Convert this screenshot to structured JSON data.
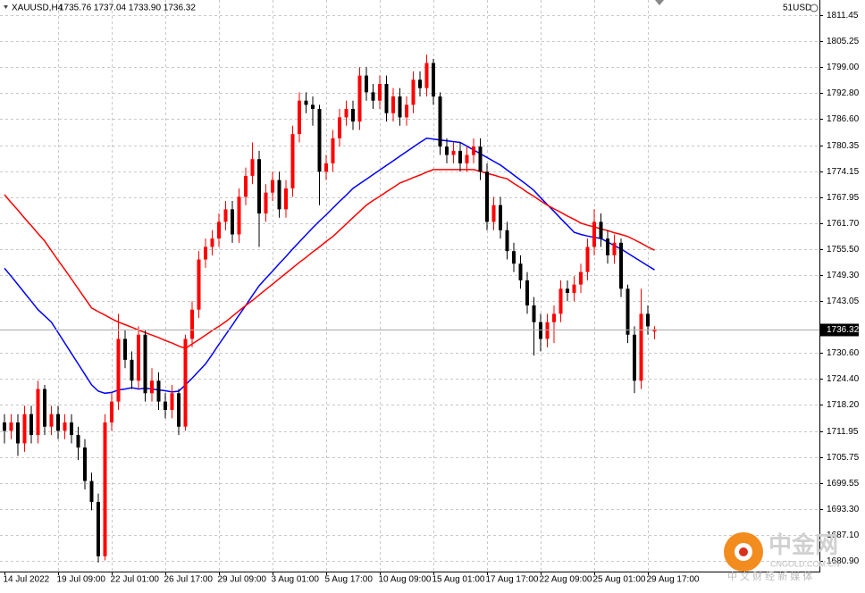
{
  "chart_data": {
    "type": "candlestick",
    "header": {
      "symbol": "XAUUSD,H4",
      "info": "1735.76 1737.04 1733.90 1736.32",
      "account": "51USD"
    },
    "watermark": {
      "name": "中金网",
      "site": "CNGOLD.COM.CN",
      "slogan": "中 文 财 经 新 媒 体"
    },
    "categories": [
      "14 Jul 2022",
      null,
      null,
      null,
      null,
      null,
      null,
      null,
      "19 Jul 09:00",
      null,
      null,
      null,
      null,
      null,
      null,
      null,
      "22 Jul 01:00",
      null,
      null,
      null,
      null,
      null,
      null,
      null,
      "26 Jul 17:00",
      null,
      null,
      null,
      null,
      null,
      null,
      null,
      "29 Jul 09:00",
      null,
      null,
      null,
      null,
      null,
      null,
      null,
      "3 Aug 01:00",
      null,
      null,
      null,
      null,
      null,
      null,
      null,
      "5 Aug 17:00",
      null,
      null,
      null,
      null,
      null,
      null,
      null,
      "10 Aug 09:00",
      null,
      null,
      null,
      null,
      null,
      null,
      null,
      "15 Aug 01:00",
      null,
      null,
      null,
      null,
      null,
      null,
      null,
      "17 Aug 17:00",
      null,
      null,
      null,
      null,
      null,
      null,
      null,
      "22 Aug 09:00",
      null,
      null,
      null,
      null,
      null,
      null,
      null,
      "25 Aug 01:00",
      null,
      null,
      null,
      null,
      null,
      null,
      null,
      "29 Aug 17:00",
      null
    ],
    "open": [
      1714,
      1712,
      1714,
      1709,
      1716,
      1711,
      1722,
      1713,
      1716,
      1712,
      1714,
      1711,
      1708,
      1700,
      1695,
      1682,
      1714,
      1719,
      1734,
      1729,
      1724,
      1735,
      1721,
      1724,
      1719,
      1717,
      1721,
      1713,
      1734,
      1741,
      1753,
      1756,
      1758,
      1762,
      1765,
      1759,
      1768,
      1773,
      1777,
      1764,
      1769,
      1772,
      1765,
      1770,
      1783,
      1791,
      1790,
      1789,
      1774,
      1776,
      1782,
      1787,
      1789,
      1786,
      1797,
      1793,
      1791,
      1795,
      1788,
      1792,
      1787,
      1790,
      1796,
      1794,
      1800,
      1792,
      1780,
      1778,
      1779,
      1776,
      1778,
      1780,
      1774,
      1762,
      1766,
      1760,
      1755,
      1752,
      1748,
      1742,
      1738,
      1734,
      1738,
      1740,
      1746,
      1745,
      1747,
      1750,
      1756,
      1762,
      1758,
      1754,
      1757,
      1746,
      1735,
      1724,
      1740,
      1735.76
    ],
    "high": [
      1716,
      1716,
      1716,
      1718,
      1718,
      1724,
      1723,
      1718,
      1718,
      1716,
      1716,
      1713,
      1710,
      1702,
      1697,
      1716,
      1721,
      1740,
      1736,
      1731,
      1737,
      1736,
      1727,
      1726,
      1721,
      1723,
      1722,
      1735,
      1743,
      1755,
      1758,
      1760,
      1764,
      1767,
      1767,
      1770,
      1775,
      1781,
      1779,
      1771,
      1774,
      1774,
      1772,
      1785,
      1793,
      1793,
      1792,
      1790,
      1778,
      1784,
      1789,
      1791,
      1791,
      1799,
      1799,
      1795,
      1797,
      1797,
      1794,
      1794,
      1792,
      1798,
      1798,
      1802,
      1801,
      1793,
      1782,
      1781,
      1781,
      1780,
      1782,
      1782,
      1776,
      1768,
      1768,
      1762,
      1757,
      1754,
      1750,
      1744,
      1740,
      1740,
      1742,
      1748,
      1748,
      1749,
      1752,
      1758,
      1765,
      1764,
      1760,
      1759,
      1758,
      1747,
      1737,
      1746,
      1742,
      1737.04
    ],
    "low": [
      1709,
      1710,
      1706,
      1707,
      1709,
      1709,
      1711,
      1711,
      1710,
      1710,
      1709,
      1705,
      1698,
      1693,
      1680.5,
      1681,
      1712,
      1717,
      1727,
      1722,
      1722,
      1719,
      1719,
      1717,
      1715,
      1715,
      1711,
      1712,
      1732,
      1739,
      1751,
      1754,
      1756,
      1760,
      1757,
      1757,
      1766,
      1771,
      1756,
      1762,
      1767,
      1763,
      1763,
      1768,
      1781,
      1788,
      1785,
      1766,
      1772,
      1774,
      1780,
      1785,
      1784,
      1784,
      1791,
      1789,
      1789,
      1786,
      1786,
      1785,
      1785,
      1788,
      1792,
      1792,
      1790,
      1778,
      1776,
      1776,
      1774,
      1774,
      1776,
      1772,
      1760,
      1760,
      1758,
      1753,
      1750,
      1746,
      1740,
      1730,
      1731,
      1732,
      1733,
      1738,
      1743,
      1743,
      1745,
      1748,
      1754,
      1756,
      1752,
      1752,
      1744,
      1733,
      1721,
      1722,
      1735,
      1733.9
    ],
    "close": [
      1712,
      1714,
      1709,
      1716,
      1711,
      1722,
      1713,
      1716,
      1712,
      1714,
      1711,
      1708,
      1700,
      1695,
      1682,
      1714,
      1719,
      1734,
      1729,
      1724,
      1735,
      1721,
      1724,
      1719,
      1717,
      1721,
      1713,
      1734,
      1741,
      1753,
      1756,
      1758,
      1762,
      1765,
      1759,
      1768,
      1773,
      1777,
      1764,
      1769,
      1772,
      1765,
      1770,
      1783,
      1791,
      1790,
      1789,
      1774,
      1776,
      1782,
      1787,
      1789,
      1786,
      1797,
      1793,
      1791,
      1795,
      1788,
      1792,
      1787,
      1790,
      1796,
      1794,
      1800,
      1792,
      1780,
      1778,
      1779,
      1776,
      1778,
      1780,
      1774,
      1762,
      1766,
      1760,
      1755,
      1752,
      1748,
      1742,
      1738,
      1734,
      1738,
      1740,
      1746,
      1745,
      1747,
      1750,
      1756,
      1762,
      1758,
      1754,
      1757,
      1746,
      1735,
      1724,
      1740,
      1737,
      1736.32
    ],
    "up_color": "#ff0000",
    "down_color": "#000000",
    "lines": [
      {
        "color": "#0000ff",
        "values": [
          1750.9,
          1749,
          1747,
          1745,
          1743,
          1741,
          1739.5,
          1738,
          1735.5,
          1733,
          1730.5,
          1728,
          1725.5,
          1723,
          1721.5,
          1721,
          1721.2,
          1721.8,
          1722,
          1722.3,
          1722,
          1722.2,
          1722,
          1721.8,
          1721.6,
          1721.3,
          1721.5,
          1723,
          1724.6,
          1726.3,
          1728,
          1730.3,
          1732.7,
          1735,
          1737.3,
          1739.7,
          1742,
          1744.4,
          1746.7,
          1748.5,
          1750.2,
          1752,
          1753.7,
          1755.5,
          1757.2,
          1758.9,
          1760.6,
          1762.2,
          1763.7,
          1765.3,
          1766.9,
          1768.4,
          1770,
          1771.1,
          1772.2,
          1773.3,
          1774.4,
          1775.5,
          1776.6,
          1777.7,
          1778.8,
          1779.9,
          1781,
          1782,
          1781.8,
          1781.6,
          1781.4,
          1781.2,
          1781,
          1780.1,
          1779.2,
          1778.3,
          1777.4,
          1776.5,
          1775.6,
          1774.4,
          1773.2,
          1772,
          1770.8,
          1769.5,
          1767.8,
          1766.1,
          1764.5,
          1762.8,
          1761.2,
          1759.5,
          1759,
          1758.6,
          1758.3,
          1758,
          1757.2,
          1756.3,
          1755.5,
          1754.5,
          1753.5,
          1752.5,
          1751.5,
          1750.5
        ]
      },
      {
        "color": "#ff0000",
        "values": [
          1768.5,
          1766.6,
          1764.8,
          1762.9,
          1761.1,
          1759.2,
          1757.4,
          1755.1,
          1752.8,
          1750.6,
          1748.3,
          1746,
          1743.7,
          1741.4,
          1740.5,
          1739.7,
          1738.8,
          1738,
          1737.4,
          1736.8,
          1736.1,
          1735.5,
          1734.9,
          1734.3,
          1733.6,
          1733,
          1732.3,
          1731.7,
          1732.8,
          1733.8,
          1734.9,
          1736,
          1737,
          1738.1,
          1739.4,
          1740.7,
          1742,
          1743.2,
          1744.5,
          1745.8,
          1747.1,
          1748.4,
          1749.7,
          1751,
          1752.3,
          1753.5,
          1754.8,
          1756,
          1757.3,
          1758.5,
          1760,
          1761.5,
          1763,
          1764.5,
          1766,
          1767.1,
          1768.1,
          1769.2,
          1770.2,
          1771.3,
          1771.9,
          1772.6,
          1773.2,
          1773.9,
          1774.5,
          1774.5,
          1774.5,
          1774.5,
          1774.5,
          1774.5,
          1774.5,
          1774.1,
          1773.6,
          1773.2,
          1772.7,
          1772.3,
          1771.2,
          1770.2,
          1769.1,
          1768.1,
          1767,
          1766,
          1765.1,
          1764.3,
          1763.4,
          1762.6,
          1761.7,
          1761.2,
          1760.8,
          1760.3,
          1759.9,
          1759.4,
          1759,
          1758.5,
          1757.7,
          1756.9,
          1756,
          1755.2
        ]
      }
    ],
    "last_price": 1736.32,
    "ylim": [
      1678.33,
      1815.08
    ],
    "yticks": [
      1811.45,
      1805.25,
      {
        "value": 1799,
        "label": "1799.00"
      },
      {
        "value": 1792.8,
        "label": "1792.80"
      },
      {
        "value": 1786.6,
        "label": "1786.60"
      },
      1780.35,
      1774.15,
      1767.95,
      {
        "value": 1761.7,
        "label": "1761.70"
      },
      {
        "value": 1755.5,
        "label": "1755.50"
      },
      {
        "value": 1749.3,
        "label": "1749.30"
      },
      1743.05,
      {
        "value": 1730.6,
        "label": "1730.60"
      },
      {
        "value": 1724.4,
        "label": "1724.40"
      },
      {
        "value": 1718.2,
        "label": "1718.20"
      },
      1711.95,
      1705.75,
      1699.55,
      {
        "value": 1693.3,
        "label": "1693.30"
      },
      {
        "value": 1687.1,
        "label": "1687.10"
      },
      {
        "value": 1680.9,
        "label": "1680.90"
      }
    ],
    "grid": true
  }
}
